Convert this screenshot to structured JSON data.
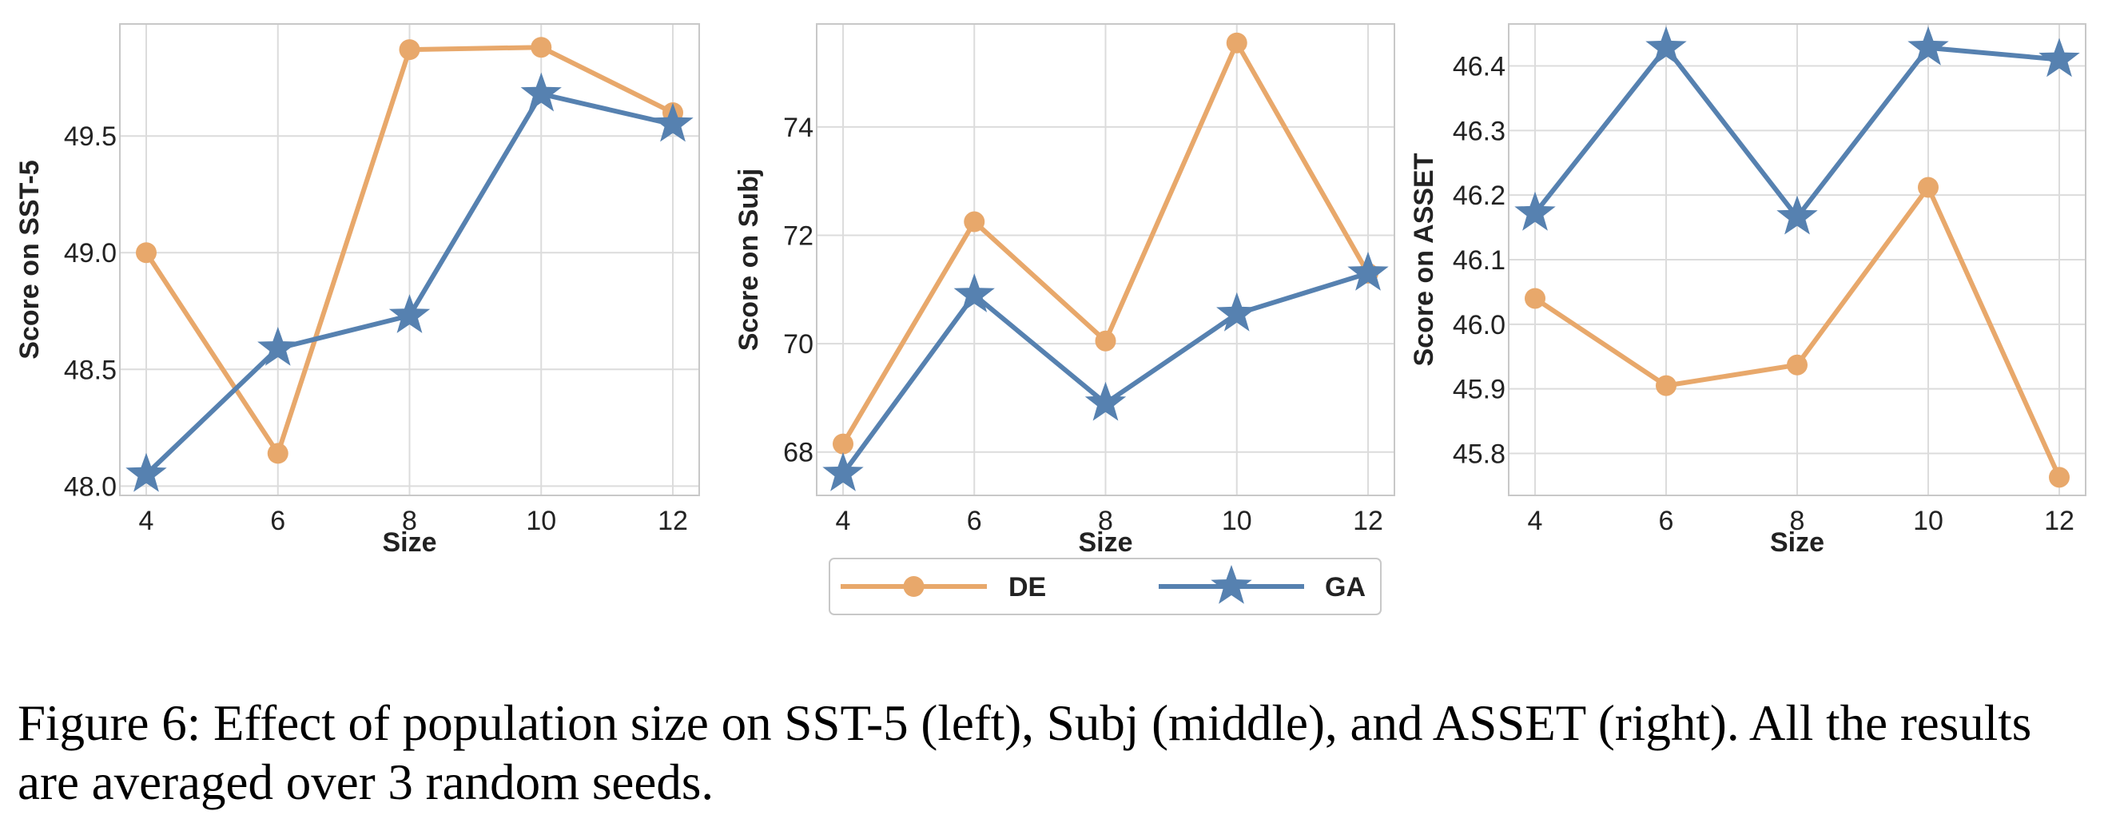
{
  "colors": {
    "DE": "#E8A86B",
    "GA": "#5681B0",
    "grid": "#dcdcdc",
    "axes": "#c8c8c8",
    "text": "#222222"
  },
  "legend": [
    {
      "label": "DE",
      "marker": "circle"
    },
    {
      "label": "GA",
      "marker": "star"
    }
  ],
  "chart_data": [
    {
      "type": "line",
      "x": [
        4,
        6,
        8,
        10,
        12
      ],
      "xlabel": "Size",
      "ylabel": "Score on SST-5",
      "xticks": [
        "4",
        "6",
        "8",
        "10",
        "12"
      ],
      "yticks": [
        48.0,
        48.5,
        49.0,
        49.5
      ],
      "ytick_labels": [
        "48.0",
        "48.5",
        "49.0",
        "49.5"
      ],
      "ylim": [
        47.96,
        49.98
      ],
      "grid": true,
      "series": [
        {
          "name": "DE",
          "values": [
            49.0,
            48.14,
            49.87,
            49.88,
            49.6
          ]
        },
        {
          "name": "GA",
          "values": [
            48.05,
            48.59,
            48.73,
            49.68,
            49.55
          ]
        }
      ]
    },
    {
      "type": "line",
      "x": [
        4,
        6,
        8,
        10,
        12
      ],
      "xlabel": "Size",
      "ylabel": "Score on Subj",
      "xticks": [
        "4",
        "6",
        "8",
        "10",
        "12"
      ],
      "yticks": [
        68,
        70,
        72,
        74
      ],
      "ytick_labels": [
        "68",
        "70",
        "72",
        "74"
      ],
      "ylim": [
        67.2,
        75.9
      ],
      "grid": true,
      "series": [
        {
          "name": "DE",
          "values": [
            68.15,
            72.25,
            70.05,
            75.55,
            71.3
          ]
        },
        {
          "name": "GA",
          "values": [
            67.6,
            70.9,
            68.9,
            70.55,
            71.3
          ]
        }
      ]
    },
    {
      "type": "line",
      "x": [
        4,
        6,
        8,
        10,
        12
      ],
      "xlabel": "Size",
      "ylabel": "Score on ASSET",
      "xticks": [
        "4",
        "6",
        "8",
        "10",
        "12"
      ],
      "yticks": [
        45.8,
        45.9,
        46.0,
        46.1,
        46.2,
        46.3,
        46.4
      ],
      "ytick_labels": [
        "45.8",
        "45.9",
        "46.0",
        "46.1",
        "46.2",
        "46.3",
        "46.4"
      ],
      "ylim": [
        45.735,
        46.465
      ],
      "grid": true,
      "series": [
        {
          "name": "DE",
          "values": [
            46.04,
            45.905,
            45.937,
            46.212,
            45.763
          ]
        },
        {
          "name": "GA",
          "values": [
            46.172,
            46.428,
            46.166,
            46.428,
            46.41
          ]
        }
      ]
    }
  ],
  "caption": "Figure 6: Effect of population size on SST-5 (left), Subj (middle), and ASSET (right). All the results are averaged over 3 random seeds."
}
